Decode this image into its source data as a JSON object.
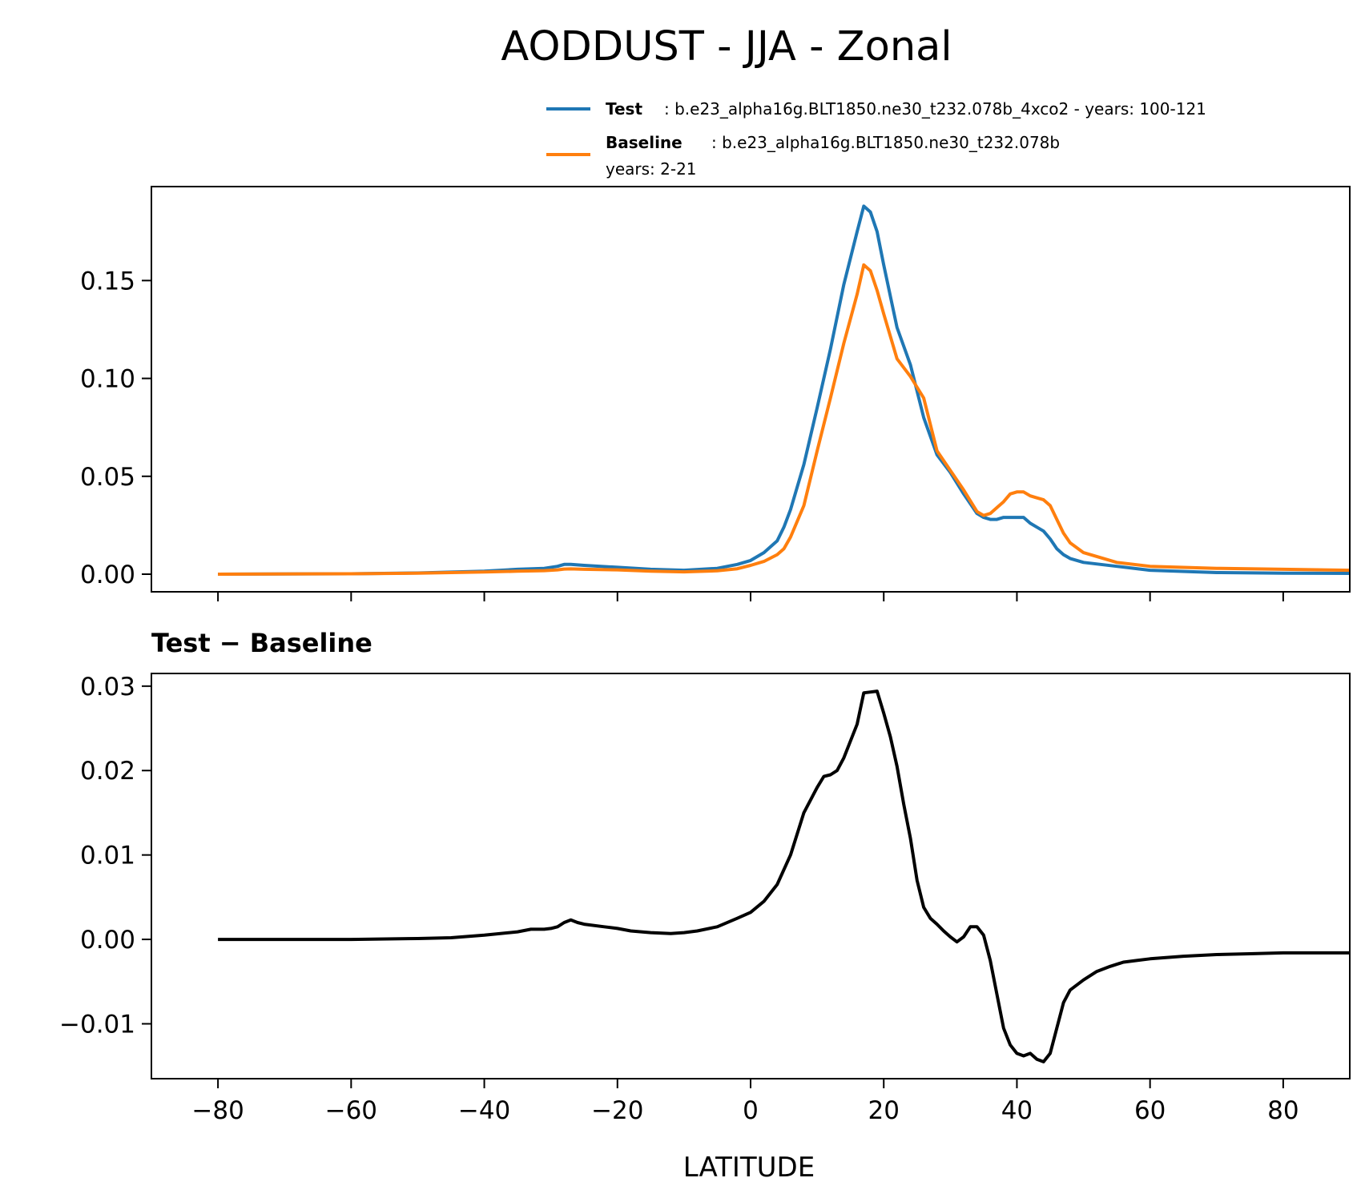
{
  "title": "AODDUST - JJA - Zonal",
  "legend": {
    "test": {
      "label": "Test",
      "description": ": b.e23_alpha16g.BLT1850.ne30_t232.078b_4xco2 - years: 100-121",
      "color": "#1f77b4"
    },
    "baseline": {
      "label": "Baseline",
      "description": ": b.e23_alpha16g.BLT1850.ne30_t232.078b",
      "description2": "years: 2-21",
      "color": "#ff7f0e"
    }
  },
  "diff_title": "Test − Baseline",
  "xlabel": "LATITUDE",
  "chart_data": [
    {
      "type": "line",
      "xlim": [
        -90,
        90
      ],
      "ylim": [
        -0.009,
        0.198
      ],
      "xticks": [
        -80,
        -60,
        -40,
        -20,
        0,
        20,
        40,
        60,
        80
      ],
      "yticks": [
        0.0,
        0.05,
        0.1,
        0.15
      ],
      "ytick_labels": [
        "0.00",
        "0.05",
        "0.10",
        "0.15"
      ],
      "series": [
        {
          "name": "Test",
          "color": "#1f77b4",
          "x": [
            -80,
            -60,
            -50,
            -40,
            -35,
            -31,
            -29,
            -28,
            -27,
            -25,
            -20,
            -15,
            -10,
            -5,
            -2,
            0,
            2,
            4,
            5,
            6,
            8,
            10,
            12,
            14,
            16,
            17,
            18,
            19,
            20,
            22,
            24,
            26,
            28,
            30,
            32,
            34,
            35,
            36,
            37,
            38,
            40,
            41,
            42,
            43,
            44,
            45,
            46,
            47,
            48,
            50,
            55,
            60,
            70,
            80,
            90
          ],
          "y": [
            0.0,
            0.0002,
            0.0006,
            0.0015,
            0.0025,
            0.003,
            0.004,
            0.005,
            0.005,
            0.0045,
            0.0035,
            0.0025,
            0.002,
            0.003,
            0.005,
            0.007,
            0.011,
            0.017,
            0.024,
            0.033,
            0.056,
            0.085,
            0.115,
            0.148,
            0.175,
            0.188,
            0.185,
            0.175,
            0.158,
            0.126,
            0.107,
            0.08,
            0.061,
            0.052,
            0.041,
            0.031,
            0.029,
            0.028,
            0.028,
            0.029,
            0.029,
            0.029,
            0.026,
            0.024,
            0.022,
            0.018,
            0.013,
            0.01,
            0.008,
            0.006,
            0.004,
            0.002,
            0.0008,
            0.0005,
            0.0004
          ]
        },
        {
          "name": "Baseline",
          "color": "#ff7f0e",
          "x": [
            -80,
            -60,
            -50,
            -40,
            -35,
            -31,
            -29,
            -28,
            -27,
            -25,
            -20,
            -15,
            -10,
            -5,
            -2,
            0,
            2,
            4,
            5,
            6,
            8,
            10,
            12,
            14,
            16,
            17,
            18,
            19,
            20,
            22,
            24,
            26,
            28,
            30,
            32,
            34,
            35,
            36,
            37,
            38,
            39,
            40,
            41,
            42,
            43,
            44,
            45,
            46,
            47,
            48,
            50,
            55,
            60,
            70,
            80,
            90
          ],
          "y": [
            0.0,
            0.0002,
            0.0005,
            0.0011,
            0.0015,
            0.0018,
            0.0022,
            0.0026,
            0.0027,
            0.0025,
            0.0022,
            0.0015,
            0.0012,
            0.0017,
            0.0028,
            0.0045,
            0.0065,
            0.01,
            0.013,
            0.019,
            0.035,
            0.063,
            0.09,
            0.118,
            0.143,
            0.158,
            0.155,
            0.145,
            0.133,
            0.11,
            0.101,
            0.09,
            0.063,
            0.053,
            0.043,
            0.032,
            0.03,
            0.031,
            0.034,
            0.037,
            0.041,
            0.042,
            0.042,
            0.04,
            0.039,
            0.038,
            0.035,
            0.028,
            0.021,
            0.016,
            0.011,
            0.006,
            0.004,
            0.003,
            0.0025,
            0.002
          ]
        }
      ]
    },
    {
      "type": "line",
      "title": "Test − Baseline",
      "xlabel": "LATITUDE",
      "xlim": [
        -90,
        90
      ],
      "ylim": [
        -0.0165,
        0.0315
      ],
      "xticks": [
        -80,
        -60,
        -40,
        -20,
        0,
        20,
        40,
        60,
        80
      ],
      "xtick_labels": [
        "−80",
        "−60",
        "−40",
        "−20",
        "0",
        "20",
        "40",
        "60",
        "80"
      ],
      "yticks": [
        -0.01,
        0.0,
        0.01,
        0.02,
        0.03
      ],
      "ytick_labels": [
        "−0.01",
        "0.00",
        "0.01",
        "0.02",
        "0.03"
      ],
      "series": [
        {
          "name": "Test − Baseline",
          "color": "#000000",
          "x": [
            -80,
            -60,
            -50,
            -45,
            -40,
            -35,
            -33,
            -31,
            -30,
            -29,
            -28,
            -27,
            -26,
            -25,
            -22,
            -20,
            -18,
            -15,
            -12,
            -10,
            -8,
            -5,
            -2,
            0,
            2,
            4,
            6,
            8,
            10,
            11,
            12,
            13,
            14,
            15,
            16,
            17,
            18,
            19,
            20,
            21,
            22,
            23,
            24,
            25,
            26,
            27,
            28,
            29,
            30,
            31,
            32,
            33,
            34,
            35,
            36,
            37,
            38,
            39,
            40,
            41,
            42,
            43,
            44,
            45,
            46,
            47,
            48,
            50,
            52,
            54,
            56,
            58,
            60,
            65,
            70,
            75,
            80,
            85,
            90
          ],
          "y": [
            0.0,
            0.0,
            0.0001,
            0.0002,
            0.0005,
            0.0009,
            0.0012,
            0.0012,
            0.0013,
            0.0015,
            0.002,
            0.0023,
            0.002,
            0.0018,
            0.0015,
            0.0013,
            0.001,
            0.0008,
            0.0007,
            0.0008,
            0.001,
            0.0015,
            0.0025,
            0.0032,
            0.0045,
            0.0065,
            0.01,
            0.015,
            0.018,
            0.0193,
            0.0195,
            0.02,
            0.0215,
            0.0235,
            0.0255,
            0.0292,
            0.0293,
            0.0294,
            0.0268,
            0.024,
            0.0205,
            0.016,
            0.012,
            0.007,
            0.0038,
            0.0025,
            0.0018,
            0.001,
            0.0003,
            -0.0003,
            0.0003,
            0.0015,
            0.0015,
            0.0005,
            -0.0025,
            -0.0065,
            -0.0105,
            -0.0125,
            -0.0135,
            -0.0138,
            -0.0135,
            -0.0142,
            -0.0145,
            -0.0135,
            -0.0105,
            -0.0075,
            -0.006,
            -0.0048,
            -0.0038,
            -0.0032,
            -0.0027,
            -0.0025,
            -0.0023,
            -0.002,
            -0.0018,
            -0.0017,
            -0.0016,
            -0.0016,
            -0.0016
          ]
        }
      ]
    }
  ]
}
